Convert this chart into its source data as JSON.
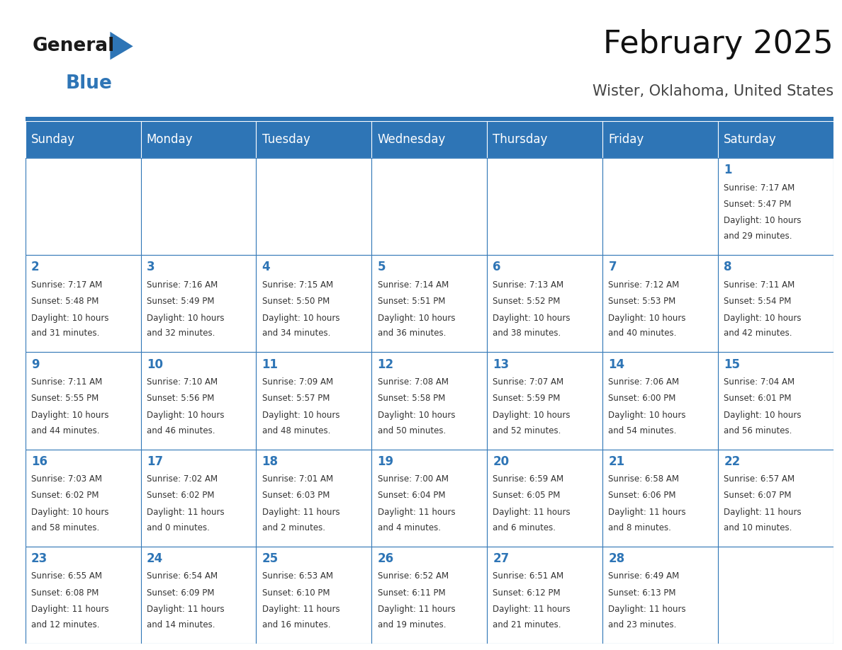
{
  "title": "February 2025",
  "subtitle": "Wister, Oklahoma, United States",
  "header_bg": "#2e75b6",
  "header_text_color": "#ffffff",
  "cell_bg": "#ffffff",
  "cell_alt_bg": "#f2f2f2",
  "cell_border_color": "#2e75b6",
  "text_color": "#333333",
  "day_number_color": "#2e75b6",
  "days_of_week": [
    "Sunday",
    "Monday",
    "Tuesday",
    "Wednesday",
    "Thursday",
    "Friday",
    "Saturday"
  ],
  "calendar_data": [
    [
      null,
      null,
      null,
      null,
      null,
      null,
      {
        "day": 1,
        "sunrise": "7:17 AM",
        "sunset": "5:47 PM",
        "daylight": "10 hours",
        "daylight2": "and 29 minutes."
      }
    ],
    [
      {
        "day": 2,
        "sunrise": "7:17 AM",
        "sunset": "5:48 PM",
        "daylight": "10 hours",
        "daylight2": "and 31 minutes."
      },
      {
        "day": 3,
        "sunrise": "7:16 AM",
        "sunset": "5:49 PM",
        "daylight": "10 hours",
        "daylight2": "and 32 minutes."
      },
      {
        "day": 4,
        "sunrise": "7:15 AM",
        "sunset": "5:50 PM",
        "daylight": "10 hours",
        "daylight2": "and 34 minutes."
      },
      {
        "day": 5,
        "sunrise": "7:14 AM",
        "sunset": "5:51 PM",
        "daylight": "10 hours",
        "daylight2": "and 36 minutes."
      },
      {
        "day": 6,
        "sunrise": "7:13 AM",
        "sunset": "5:52 PM",
        "daylight": "10 hours",
        "daylight2": "and 38 minutes."
      },
      {
        "day": 7,
        "sunrise": "7:12 AM",
        "sunset": "5:53 PM",
        "daylight": "10 hours",
        "daylight2": "and 40 minutes."
      },
      {
        "day": 8,
        "sunrise": "7:11 AM",
        "sunset": "5:54 PM",
        "daylight": "10 hours",
        "daylight2": "and 42 minutes."
      }
    ],
    [
      {
        "day": 9,
        "sunrise": "7:11 AM",
        "sunset": "5:55 PM",
        "daylight": "10 hours",
        "daylight2": "and 44 minutes."
      },
      {
        "day": 10,
        "sunrise": "7:10 AM",
        "sunset": "5:56 PM",
        "daylight": "10 hours",
        "daylight2": "and 46 minutes."
      },
      {
        "day": 11,
        "sunrise": "7:09 AM",
        "sunset": "5:57 PM",
        "daylight": "10 hours",
        "daylight2": "and 48 minutes."
      },
      {
        "day": 12,
        "sunrise": "7:08 AM",
        "sunset": "5:58 PM",
        "daylight": "10 hours",
        "daylight2": "and 50 minutes."
      },
      {
        "day": 13,
        "sunrise": "7:07 AM",
        "sunset": "5:59 PM",
        "daylight": "10 hours",
        "daylight2": "and 52 minutes."
      },
      {
        "day": 14,
        "sunrise": "7:06 AM",
        "sunset": "6:00 PM",
        "daylight": "10 hours",
        "daylight2": "and 54 minutes."
      },
      {
        "day": 15,
        "sunrise": "7:04 AM",
        "sunset": "6:01 PM",
        "daylight": "10 hours",
        "daylight2": "and 56 minutes."
      }
    ],
    [
      {
        "day": 16,
        "sunrise": "7:03 AM",
        "sunset": "6:02 PM",
        "daylight": "10 hours",
        "daylight2": "and 58 minutes."
      },
      {
        "day": 17,
        "sunrise": "7:02 AM",
        "sunset": "6:02 PM",
        "daylight": "11 hours",
        "daylight2": "and 0 minutes."
      },
      {
        "day": 18,
        "sunrise": "7:01 AM",
        "sunset": "6:03 PM",
        "daylight": "11 hours",
        "daylight2": "and 2 minutes."
      },
      {
        "day": 19,
        "sunrise": "7:00 AM",
        "sunset": "6:04 PM",
        "daylight": "11 hours",
        "daylight2": "and 4 minutes."
      },
      {
        "day": 20,
        "sunrise": "6:59 AM",
        "sunset": "6:05 PM",
        "daylight": "11 hours",
        "daylight2": "and 6 minutes."
      },
      {
        "day": 21,
        "sunrise": "6:58 AM",
        "sunset": "6:06 PM",
        "daylight": "11 hours",
        "daylight2": "and 8 minutes."
      },
      {
        "day": 22,
        "sunrise": "6:57 AM",
        "sunset": "6:07 PM",
        "daylight": "11 hours",
        "daylight2": "and 10 minutes."
      }
    ],
    [
      {
        "day": 23,
        "sunrise": "6:55 AM",
        "sunset": "6:08 PM",
        "daylight": "11 hours",
        "daylight2": "and 12 minutes."
      },
      {
        "day": 24,
        "sunrise": "6:54 AM",
        "sunset": "6:09 PM",
        "daylight": "11 hours",
        "daylight2": "and 14 minutes."
      },
      {
        "day": 25,
        "sunrise": "6:53 AM",
        "sunset": "6:10 PM",
        "daylight": "11 hours",
        "daylight2": "and 16 minutes."
      },
      {
        "day": 26,
        "sunrise": "6:52 AM",
        "sunset": "6:11 PM",
        "daylight": "11 hours",
        "daylight2": "and 19 minutes."
      },
      {
        "day": 27,
        "sunrise": "6:51 AM",
        "sunset": "6:12 PM",
        "daylight": "11 hours",
        "daylight2": "and 21 minutes."
      },
      {
        "day": 28,
        "sunrise": "6:49 AM",
        "sunset": "6:13 PM",
        "daylight": "11 hours",
        "daylight2": "and 23 minutes."
      },
      null
    ]
  ],
  "logo_color1": "#1a1a1a",
  "logo_color2": "#2e75b6",
  "fig_bg": "#ffffff",
  "title_fontsize": 32,
  "subtitle_fontsize": 15,
  "header_fontsize": 12,
  "day_num_fontsize": 12,
  "cell_text_fontsize": 8.5
}
